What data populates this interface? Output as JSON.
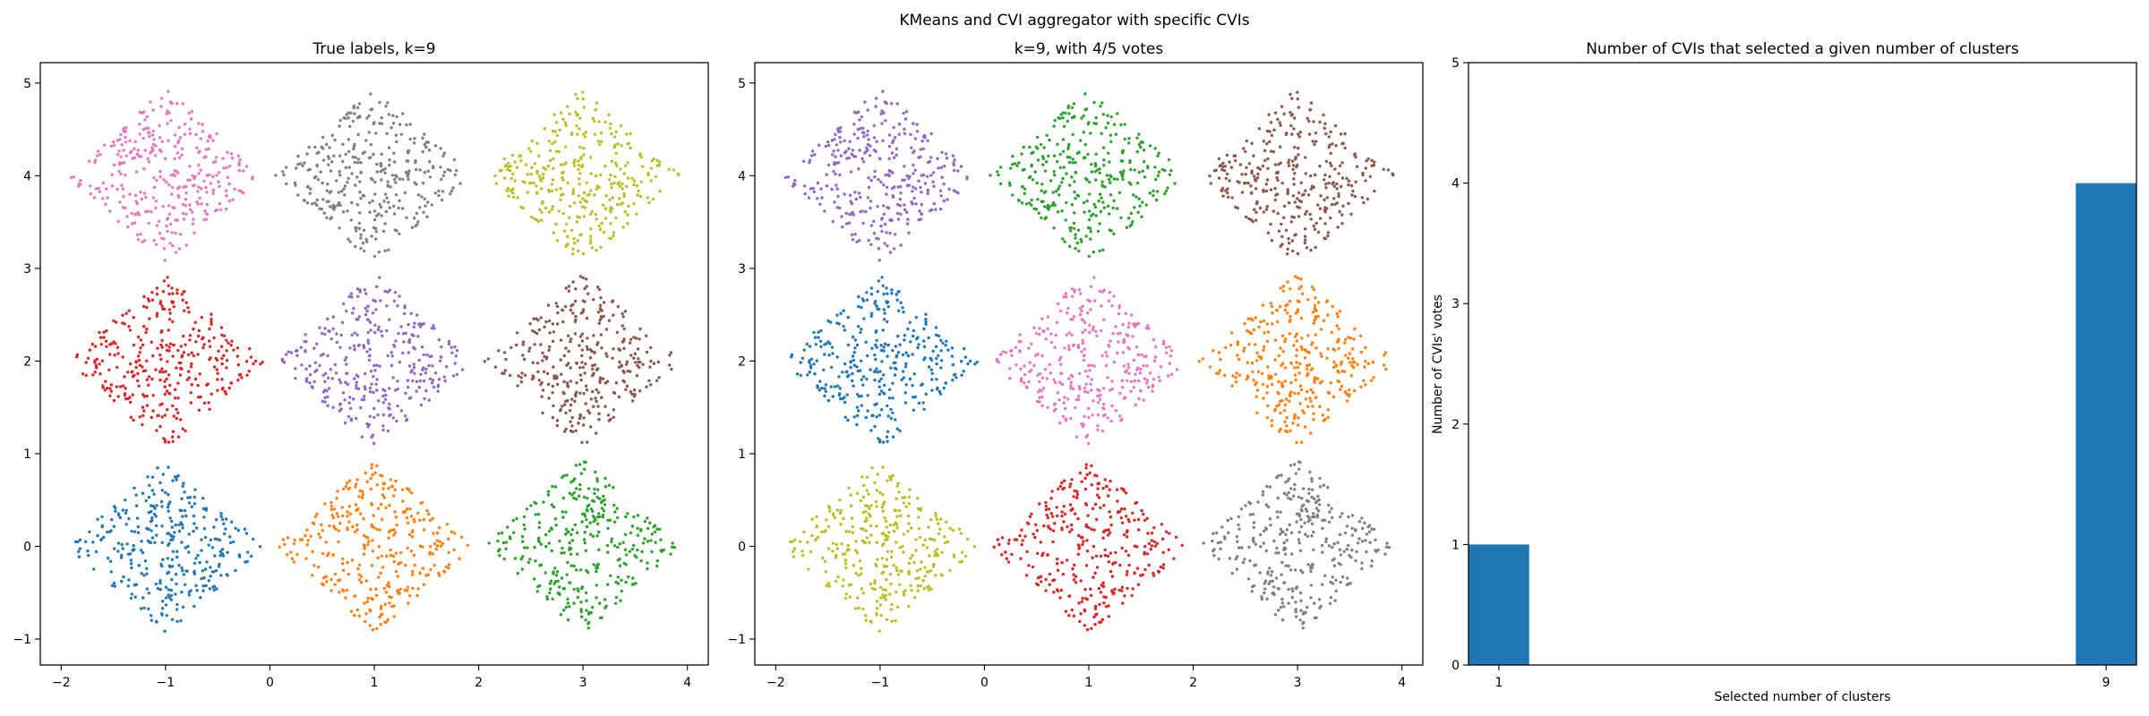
{
  "figure": {
    "suptitle": "KMeans and CVI aggregator with specific CVIs"
  },
  "palette": {
    "blue": "#1f77b4",
    "orange": "#ff7f0e",
    "green": "#2ca02c",
    "red": "#d62728",
    "purple": "#9467bd",
    "brown": "#8c564b",
    "pink": "#e377c2",
    "gray": "#7f7f7f",
    "olive": "#bcbd22"
  },
  "chart_data": [
    {
      "type": "scatter",
      "title": "True labels, k=9",
      "xlabel": "",
      "ylabel": "",
      "xlim": [
        -2.2,
        4.2
      ],
      "ylim": [
        -1.28,
        5.22
      ],
      "xticks": [
        -2,
        -1,
        0,
        1,
        2,
        3,
        4
      ],
      "xtick_labels": [
        "−2",
        "−1",
        "0",
        "1",
        "2",
        "3",
        "4"
      ],
      "yticks": [
        -1,
        0,
        1,
        2,
        3,
        4,
        5
      ],
      "ytick_labels": [
        "−1",
        "0",
        "1",
        "2",
        "3",
        "4",
        "5"
      ],
      "grid": false,
      "marker_size": 3,
      "series": [
        {
          "center": [
            -1,
            0
          ],
          "color": "blue"
        },
        {
          "center": [
            1,
            0
          ],
          "color": "orange"
        },
        {
          "center": [
            3,
            0
          ],
          "color": "green"
        },
        {
          "center": [
            -1,
            2
          ],
          "color": "red"
        },
        {
          "center": [
            1,
            2
          ],
          "color": "purple"
        },
        {
          "center": [
            3,
            2
          ],
          "color": "brown"
        },
        {
          "center": [
            -1,
            4
          ],
          "color": "pink"
        },
        {
          "center": [
            1,
            4
          ],
          "color": "gray"
        },
        {
          "center": [
            3,
            4
          ],
          "color": "olive"
        }
      ],
      "cluster_shape": "diamond",
      "cluster_radius": 0.95,
      "points_per_cluster": 330
    },
    {
      "type": "scatter",
      "title": "k=9, with 4/5 votes",
      "xlabel": "",
      "ylabel": "",
      "xlim": [
        -2.2,
        4.2
      ],
      "ylim": [
        -1.28,
        5.22
      ],
      "xticks": [
        -2,
        -1,
        0,
        1,
        2,
        3,
        4
      ],
      "xtick_labels": [
        "−2",
        "−1",
        "0",
        "1",
        "2",
        "3",
        "4"
      ],
      "yticks": [
        -1,
        0,
        1,
        2,
        3,
        4,
        5
      ],
      "ytick_labels": [
        "−1",
        "0",
        "1",
        "2",
        "3",
        "4",
        "5"
      ],
      "grid": false,
      "marker_size": 3,
      "series": [
        {
          "center": [
            -1,
            0
          ],
          "color": "olive"
        },
        {
          "center": [
            1,
            0
          ],
          "color": "red"
        },
        {
          "center": [
            3,
            0
          ],
          "color": "gray"
        },
        {
          "center": [
            -1,
            2
          ],
          "color": "blue"
        },
        {
          "center": [
            1,
            2
          ],
          "color": "pink"
        },
        {
          "center": [
            3,
            2
          ],
          "color": "orange"
        },
        {
          "center": [
            -1,
            4
          ],
          "color": "purple"
        },
        {
          "center": [
            1,
            4
          ],
          "color": "green"
        },
        {
          "center": [
            3,
            4
          ],
          "color": "brown"
        }
      ],
      "cluster_shape": "diamond",
      "cluster_radius": 0.95,
      "points_per_cluster": 330
    },
    {
      "type": "bar",
      "title": "Number of CVIs that selected a given number of clusters",
      "xlabel": "Selected number of clusters",
      "ylabel": "Number of CVIs' votes",
      "x": [
        1,
        9
      ],
      "values": [
        1,
        4
      ],
      "bar_width": 0.8,
      "xlim": [
        0.6,
        9.4
      ],
      "ylim": [
        0,
        5
      ],
      "xticks": [
        1,
        9
      ],
      "xtick_labels": [
        "1",
        "9"
      ],
      "yticks": [
        0,
        1,
        2,
        3,
        4,
        5
      ],
      "ytick_labels": [
        "0",
        "1",
        "2",
        "3",
        "4",
        "5"
      ],
      "bar_color": "#1f77b4",
      "grid": false
    }
  ]
}
